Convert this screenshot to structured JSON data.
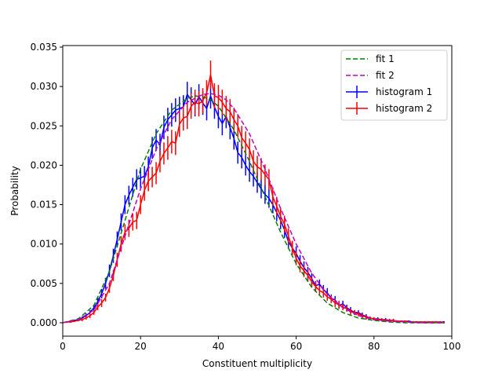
{
  "chart_data": {
    "type": "line",
    "title": "",
    "xlabel": "Constituent multiplicity",
    "ylabel": "Probability",
    "xlim": [
      0,
      100
    ],
    "ylim": [
      -0.0017,
      0.0352
    ],
    "xticks": [
      0,
      20,
      40,
      60,
      80,
      100
    ],
    "xtick_labels": [
      "0",
      "20",
      "40",
      "60",
      "80",
      "100"
    ],
    "yticks": [
      0.0,
      0.005,
      0.01,
      0.015,
      0.02,
      0.025,
      0.03,
      0.035
    ],
    "ytick_labels": [
      "0.000",
      "0.005",
      "0.010",
      "0.015",
      "0.020",
      "0.025",
      "0.030",
      "0.035"
    ],
    "grid": false,
    "legend_position": "top-right",
    "series": [
      {
        "name": "fit 1",
        "kind": "fit",
        "color": "#008000",
        "dashed": true,
        "x": [
          0,
          4,
          8,
          12,
          16,
          20,
          24,
          28,
          32,
          34,
          36,
          38,
          40,
          44,
          48,
          52,
          56,
          60,
          64,
          68,
          72,
          76,
          80,
          84,
          88,
          92,
          96,
          98
        ],
        "y": [
          0.0,
          0.0005,
          0.0022,
          0.0065,
          0.013,
          0.0195,
          0.024,
          0.027,
          0.0285,
          0.0288,
          0.0287,
          0.0283,
          0.0275,
          0.0245,
          0.0205,
          0.016,
          0.0115,
          0.0075,
          0.0045,
          0.0025,
          0.0013,
          0.0006,
          0.0003,
          0.0001,
          0.0,
          0.0,
          0.0,
          0.0
        ]
      },
      {
        "name": "fit 2",
        "kind": "fit",
        "color": "#bf00bf",
        "dashed": true,
        "x": [
          0,
          4,
          8,
          12,
          16,
          20,
          24,
          28,
          32,
          36,
          38,
          40,
          42,
          44,
          48,
          52,
          56,
          60,
          64,
          68,
          72,
          76,
          80,
          84,
          88,
          92,
          96,
          98
        ],
        "y": [
          0.0,
          0.0004,
          0.0016,
          0.005,
          0.011,
          0.017,
          0.022,
          0.0258,
          0.028,
          0.029,
          0.0291,
          0.0289,
          0.0283,
          0.0272,
          0.024,
          0.0195,
          0.0145,
          0.01,
          0.0063,
          0.0036,
          0.0019,
          0.0009,
          0.0004,
          0.0002,
          0.0001,
          0.0,
          0.0,
          0.0
        ]
      },
      {
        "name": "histogram 1",
        "kind": "histogram",
        "color": "#0000ff",
        "x": [
          1,
          2,
          3,
          4,
          5,
          6,
          7,
          8,
          9,
          10,
          11,
          12,
          13,
          14,
          15,
          16,
          17,
          18,
          19,
          20,
          21,
          22,
          23,
          24,
          25,
          26,
          27,
          28,
          29,
          30,
          31,
          32,
          33,
          34,
          35,
          36,
          37,
          38,
          39,
          40,
          41,
          42,
          43,
          44,
          45,
          46,
          47,
          48,
          49,
          50,
          51,
          52,
          53,
          54,
          55,
          56,
          57,
          58,
          59,
          60,
          61,
          62,
          63,
          64,
          65,
          66,
          67,
          68,
          69,
          70,
          71,
          72,
          73,
          74,
          75,
          76,
          77,
          78,
          79,
          80,
          81,
          82,
          83,
          84,
          85,
          86,
          87,
          88,
          89,
          90,
          91,
          92,
          93,
          94,
          95,
          96,
          97,
          98
        ],
        "y": [
          0.0001,
          0.0002,
          0.0003,
          0.0004,
          0.0006,
          0.0009,
          0.0013,
          0.0019,
          0.0027,
          0.0037,
          0.005,
          0.0066,
          0.0085,
          0.0106,
          0.0128,
          0.015,
          0.0162,
          0.0172,
          0.0182,
          0.0184,
          0.0186,
          0.0198,
          0.0222,
          0.0232,
          0.0226,
          0.0248,
          0.0258,
          0.0264,
          0.027,
          0.0272,
          0.0274,
          0.029,
          0.0283,
          0.0277,
          0.0287,
          0.0279,
          0.0272,
          0.0288,
          0.0274,
          0.0262,
          0.0253,
          0.0262,
          0.0248,
          0.0234,
          0.0216,
          0.021,
          0.02,
          0.0192,
          0.0186,
          0.0178,
          0.017,
          0.0163,
          0.0158,
          0.015,
          0.014,
          0.013,
          0.0118,
          0.0103,
          0.0095,
          0.0088,
          0.0078,
          0.007,
          0.0064,
          0.0056,
          0.0047,
          0.0049,
          0.0042,
          0.0038,
          0.0031,
          0.0029,
          0.0022,
          0.0024,
          0.0019,
          0.0016,
          0.0013,
          0.0013,
          0.001,
          0.0008,
          0.0006,
          0.0005,
          0.0005,
          0.0004,
          0.0004,
          0.0003,
          0.0003,
          0.0002,
          0.0002,
          0.0002,
          0.0002,
          0.0001,
          0.0001,
          0.0001,
          0.0001,
          0.0001,
          0.0001,
          0.0001,
          0.0001,
          0.0001
        ],
        "yerr": [
          0.0001,
          0.0001,
          0.0001,
          0.0002,
          0.0002,
          0.0003,
          0.0003,
          0.0004,
          0.0005,
          0.0006,
          0.0007,
          0.0008,
          0.0009,
          0.001,
          0.0011,
          0.0012,
          0.0012,
          0.0012,
          0.0013,
          0.0013,
          0.0013,
          0.0013,
          0.0014,
          0.0014,
          0.0014,
          0.0015,
          0.0015,
          0.0015,
          0.0015,
          0.0015,
          0.0015,
          0.0016,
          0.0016,
          0.0015,
          0.0016,
          0.0015,
          0.0015,
          0.0016,
          0.0015,
          0.0015,
          0.0015,
          0.0015,
          0.0015,
          0.0014,
          0.0014,
          0.0014,
          0.0013,
          0.0013,
          0.0013,
          0.0013,
          0.0012,
          0.0012,
          0.0012,
          0.0011,
          0.0011,
          0.0011,
          0.001,
          0.0009,
          0.0009,
          0.0009,
          0.0008,
          0.0008,
          0.0007,
          0.0007,
          0.0006,
          0.0006,
          0.0006,
          0.0006,
          0.0005,
          0.0005,
          0.0004,
          0.0004,
          0.0004,
          0.0004,
          0.0003,
          0.0003,
          0.0003,
          0.0003,
          0.0002,
          0.0002,
          0.0002,
          0.0002,
          0.0002,
          0.0002,
          0.0002,
          0.0001,
          0.0001,
          0.0001,
          0.0001,
          0.0001,
          0.0001,
          0.0001,
          0.0001,
          0.0001,
          0.0001,
          0.0001,
          0.0001,
          0.0001
        ]
      },
      {
        "name": "histogram 2",
        "kind": "histogram",
        "color": "#ff0000",
        "x": [
          1,
          2,
          3,
          4,
          5,
          6,
          7,
          8,
          9,
          10,
          11,
          12,
          13,
          14,
          15,
          16,
          17,
          18,
          19,
          20,
          21,
          22,
          23,
          24,
          25,
          26,
          27,
          28,
          29,
          30,
          31,
          32,
          33,
          34,
          35,
          36,
          37,
          38,
          39,
          40,
          41,
          42,
          43,
          44,
          45,
          46,
          47,
          48,
          49,
          50,
          51,
          52,
          53,
          54,
          55,
          56,
          57,
          58,
          59,
          60,
          61,
          62,
          63,
          64,
          65,
          66,
          67,
          68,
          69,
          70,
          71,
          72,
          73,
          74,
          75,
          76,
          77,
          78,
          79,
          80,
          81,
          82,
          83,
          84,
          85,
          86,
          87,
          88,
          89,
          90,
          91,
          92,
          93,
          94,
          95,
          96,
          97,
          98
        ],
        "y": [
          0.0001,
          0.0001,
          0.0002,
          0.0003,
          0.0004,
          0.0006,
          0.0009,
          0.0013,
          0.002,
          0.0025,
          0.0032,
          0.0044,
          0.006,
          0.008,
          0.01,
          0.0115,
          0.012,
          0.0128,
          0.013,
          0.015,
          0.0168,
          0.018,
          0.0185,
          0.019,
          0.0205,
          0.0215,
          0.0222,
          0.023,
          0.0228,
          0.0252,
          0.026,
          0.0262,
          0.0275,
          0.028,
          0.0278,
          0.0282,
          0.0292,
          0.0315,
          0.0288,
          0.0286,
          0.028,
          0.0272,
          0.0268,
          0.0258,
          0.025,
          0.0235,
          0.0228,
          0.022,
          0.0205,
          0.0198,
          0.0195,
          0.0188,
          0.0182,
          0.016,
          0.0148,
          0.0135,
          0.0125,
          0.011,
          0.0095,
          0.0082,
          0.0072,
          0.0066,
          0.006,
          0.0052,
          0.0046,
          0.0041,
          0.0038,
          0.0033,
          0.003,
          0.0025,
          0.0023,
          0.002,
          0.0018,
          0.0014,
          0.0013,
          0.0011,
          0.0009,
          0.0007,
          0.0006,
          0.0005,
          0.0004,
          0.0004,
          0.0003,
          0.0003,
          0.0003,
          0.0002,
          0.0002,
          0.0002,
          0.0001,
          0.0001,
          0.0001,
          0.0001,
          0.0001,
          0.0001,
          0.0001,
          0.0001,
          0.0001,
          0.0
        ],
        "yerr": [
          0.0001,
          0.0001,
          0.0001,
          0.0001,
          0.0002,
          0.0002,
          0.0003,
          0.0003,
          0.0004,
          0.0005,
          0.0005,
          0.0006,
          0.0007,
          0.0009,
          0.001,
          0.001,
          0.0011,
          0.0011,
          0.0011,
          0.0012,
          0.0013,
          0.0013,
          0.0013,
          0.0014,
          0.0014,
          0.0014,
          0.0015,
          0.0015,
          0.0015,
          0.0016,
          0.0016,
          0.0016,
          0.0016,
          0.0016,
          0.0016,
          0.0016,
          0.0016,
          0.0018,
          0.0016,
          0.0016,
          0.0016,
          0.0016,
          0.0016,
          0.0015,
          0.0015,
          0.0015,
          0.0015,
          0.0014,
          0.0014,
          0.0014,
          0.0014,
          0.0013,
          0.0013,
          0.0012,
          0.0012,
          0.0011,
          0.0011,
          0.001,
          0.0009,
          0.0009,
          0.0008,
          0.0008,
          0.0008,
          0.0007,
          0.0007,
          0.0006,
          0.0006,
          0.0005,
          0.0005,
          0.0005,
          0.0005,
          0.0004,
          0.0004,
          0.0004,
          0.0003,
          0.0003,
          0.0003,
          0.0003,
          0.0002,
          0.0002,
          0.0002,
          0.0002,
          0.0002,
          0.0002,
          0.0002,
          0.0001,
          0.0001,
          0.0001,
          0.0001,
          0.0001,
          0.0001,
          0.0001,
          0.0001,
          0.0001,
          0.0001,
          0.0001,
          0.0001,
          0.0001
        ]
      }
    ]
  }
}
